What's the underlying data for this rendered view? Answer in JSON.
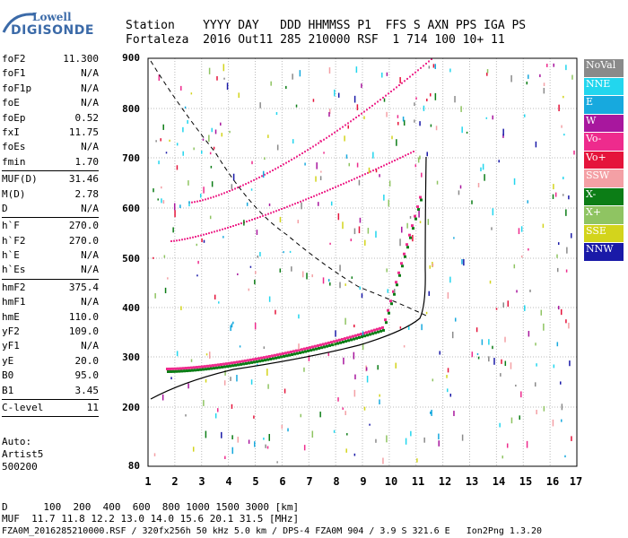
{
  "logo": {
    "line1": "Lowell",
    "line2": "DIGISONDE"
  },
  "header": {
    "row1": "Station    YYYY DAY   DDD HHMMSS P1  FFS S AXN PPS IGA PS",
    "row2": "Fortaleza  2016 Out11 285 210000 RSF  1 714 100 10+ 11"
  },
  "params": {
    "group1": [
      {
        "k": "foF2",
        "v": "11.300"
      },
      {
        "k": "foF1",
        "v": "N/A"
      },
      {
        "k": "foF1p",
        "v": "N/A"
      },
      {
        "k": "foE",
        "v": "N/A"
      },
      {
        "k": "foEp",
        "v": "0.52"
      },
      {
        "k": "fxI",
        "v": "11.75"
      },
      {
        "k": "foEs",
        "v": "N/A"
      },
      {
        "k": "fmin",
        "v": "1.70"
      }
    ],
    "group2": [
      {
        "k": "MUF(D)",
        "v": "31.46"
      },
      {
        "k": "M(D)",
        "v": "2.78"
      },
      {
        "k": "D",
        "v": "N/A"
      }
    ],
    "group3": [
      {
        "k": "h`F",
        "v": "270.0"
      },
      {
        "k": "h`F2",
        "v": "270.0"
      },
      {
        "k": "h`E",
        "v": "N/A"
      },
      {
        "k": "h`Es",
        "v": "N/A"
      }
    ],
    "group4": [
      {
        "k": "hmF2",
        "v": "375.4"
      },
      {
        "k": "hmF1",
        "v": "N/A"
      },
      {
        "k": "hmE",
        "v": "110.0"
      },
      {
        "k": "yF2",
        "v": "109.0"
      },
      {
        "k": "yF1",
        "v": "N/A"
      },
      {
        "k": "yE",
        "v": "20.0"
      },
      {
        "k": "B0",
        "v": "95.0"
      },
      {
        "k": "B1",
        "v": "3.45"
      }
    ],
    "group5": [
      {
        "k": "C-level",
        "v": "11"
      }
    ]
  },
  "auto": {
    "l1": "Auto:",
    "l2": "Artist5",
    "l3": "500200"
  },
  "axes": {
    "y_ticks": [
      "900",
      "800",
      "700",
      "600",
      "500",
      "400",
      "300",
      "200",
      "80"
    ],
    "x_ticks": [
      "1",
      "2",
      "3",
      "4",
      "5",
      "6",
      "7",
      "8",
      "9",
      "10",
      "11",
      "12",
      "13",
      "14",
      "15",
      "16",
      "17"
    ]
  },
  "legend": [
    {
      "label": "NoVal",
      "color": "#8a8a8a"
    },
    {
      "label": "NNE",
      "color": "#22d6ee"
    },
    {
      "label": "E",
      "color": "#17a9de"
    },
    {
      "label": "W",
      "color": "#a8179e"
    },
    {
      "label": "Vo-",
      "color": "#ee2b8d"
    },
    {
      "label": "Vo+",
      "color": "#e5143b"
    },
    {
      "label": "SSW",
      "color": "#f4a0a5"
    },
    {
      "label": "X-",
      "color": "#0c7d16"
    },
    {
      "label": "X+",
      "color": "#8fc462"
    },
    {
      "label": "SSE",
      "color": "#d3d41c"
    },
    {
      "label": "NNW",
      "color": "#1a1aa8"
    }
  ],
  "footer": {
    "row1": "D      100  200  400  600  800 1000 1500 3000 [km]",
    "row2": "MUF  11.7 11.8 12.2 13.0 14.0 15.6 20.1 31.5 [MHz]",
    "row3": "FZA0M_2016285210000.RSF / 320fx256h 50 kHz 5.0 km / DPS-4 FZA0M 904 / 3.9 S 321.6 E   Ion2Png 1.3.20"
  }
}
